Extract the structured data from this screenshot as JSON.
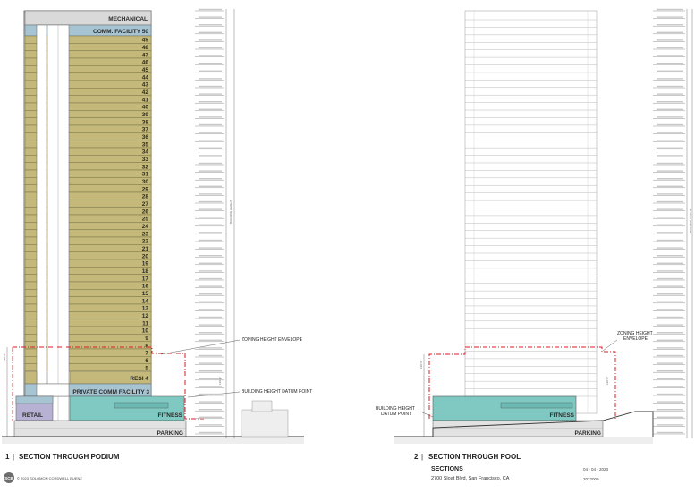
{
  "podium": {
    "residential_floor_numbers": [
      49,
      48,
      47,
      46,
      45,
      44,
      43,
      42,
      41,
      40,
      39,
      38,
      37,
      36,
      35,
      34,
      33,
      32,
      31,
      30,
      29,
      28,
      27,
      26,
      25,
      24,
      23,
      22,
      21,
      20,
      19,
      18,
      17,
      16,
      15,
      14,
      13,
      12,
      11,
      10,
      9,
      8,
      7,
      6,
      5
    ],
    "labels": {
      "mechanical": "MECHANICAL",
      "comm_facility": "COMM. FACILITY 50",
      "resi": "RESI",
      "resi_floor": "4",
      "private_comm": "PRIVATE COMM FACILITY 3",
      "retail": "RETAIL",
      "fitness": "FITNESS",
      "parking": "PARKING"
    },
    "notes": {
      "zoning": "ZONING HEIGHT ENVELOPE",
      "datum": "BUILDING HEIGHT DATUM POINT"
    },
    "caption_number": "1",
    "caption": "SECTION THROUGH PODIUM"
  },
  "pool": {
    "labels": {
      "fitness": "FITNESS",
      "parking": "PARKING"
    },
    "notes": {
      "zoning_line1": "ZONING HEIGHT",
      "zoning_line2": "ENVELOPE",
      "datum_line1": "BUILDING HEIGHT",
      "datum_line2": "DATUM POINT"
    },
    "caption_number": "2",
    "caption": "SECTION THROUGH POOL"
  },
  "title_block": {
    "sheet": "SECTIONS",
    "address": "2700 Sloat Blvd, San Francisco, CA",
    "date": "04 - 04 - 2023",
    "project_no": "2022000",
    "copyright": "© 2023 SOLOMON CORDWELL BUENZ",
    "logo": "SCB"
  },
  "colors": {
    "residential": "#c4b97a",
    "amenity": "#a7c4d2",
    "pool_fill": "#7fc9c2",
    "retail": "#b7b2d4",
    "mechanical": "#d9d9d9",
    "zoning_line": "#d41e2a"
  }
}
